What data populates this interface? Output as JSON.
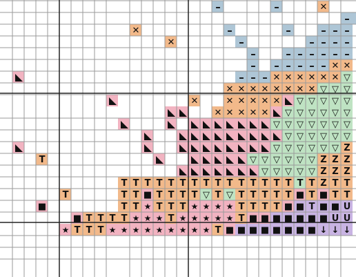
{
  "colors": {
    "background": "#ffffff",
    "grid_line": "#9a9a9a",
    "major_line": "#222222",
    "blue": "#aec6d6",
    "orange": "#f2b98a",
    "pink": "#f2b3c1",
    "green": "#bfe3c3",
    "purple": "#c9b4e3"
  },
  "symbols": {
    "T": {
      "color": "orange",
      "glyph": "T"
    },
    "X": {
      "color": "orange",
      "glyph": "✕"
    },
    "C": {
      "color": "pink",
      "glyph": "corner"
    },
    "D": {
      "color": "blue",
      "glyph": "–"
    },
    "V": {
      "color": "green",
      "glyph": "▽"
    },
    "Z": {
      "color": "orange",
      "glyph": "Z"
    },
    "S": {
      "color": "pink",
      "glyph": "★"
    },
    "B": {
      "color": "pink",
      "glyph": "■"
    },
    "U": {
      "color": "purple",
      "glyph": "U"
    },
    "A": {
      "color": "purple",
      "glyph": "↓"
    }
  },
  "rows": [
    "..................D....D...X..",
    ".............................DD",
    "...........X.......D....D..DDD",
    "..............X.....D.....DDDD",
    ".....................D..DDDDDD",
    ".....................D.DDDDDXX",
    ".C..................DDDXXXXXXV",
    "...................XXXXXXXXVVV",
    ".........C......X..XXXXXCVVVVV",
    "..............CC..XXXXXCVVVVVV",
    "..........C...C.CCCCCCCVVVVVVV",
    "............C..CCCCCCCCCVVVVVV",
    ".C..........C..CCCCCCCCVVVVVVZ",
    "...T.........C..CCCCCVVVVVVZZZ",
    "...............CCCCCCCVVVVVZZZ",
    "..........TTTTTTTTTTTTTTTTTZTT",
    ".....T....TTBTTTTVTVTTTTTBTBTT",
    "...B......TTSTTTSSSSTTTTBBTBBU",
    "......BTTTTSSSTSSSSSTBBBBBBBUU",
    ".....STTTSSSSSSSSSTBBBBBBBBAAA"
  ],
  "overrides": {
    "16,17": "green",
    "16,19": "green",
    "17,10": "orange",
    "18,10": "orange",
    "15,25": "green",
    "16,26": "orange",
    "17,25": "purple",
    "17,26": "purple",
    "17,27": "purple",
    "17,28": "purple",
    "18,23": "purple",
    "18,24": "purple",
    "18,25": "purple",
    "18,26": "purple",
    "18,27": "purple",
    "19,20": "purple",
    "19,21": "purple",
    "19,22": "purple",
    "19,23": "purple",
    "19,24": "purple",
    "19,25": "purple",
    "19,26": "purple",
    "19,27": "purple"
  }
}
